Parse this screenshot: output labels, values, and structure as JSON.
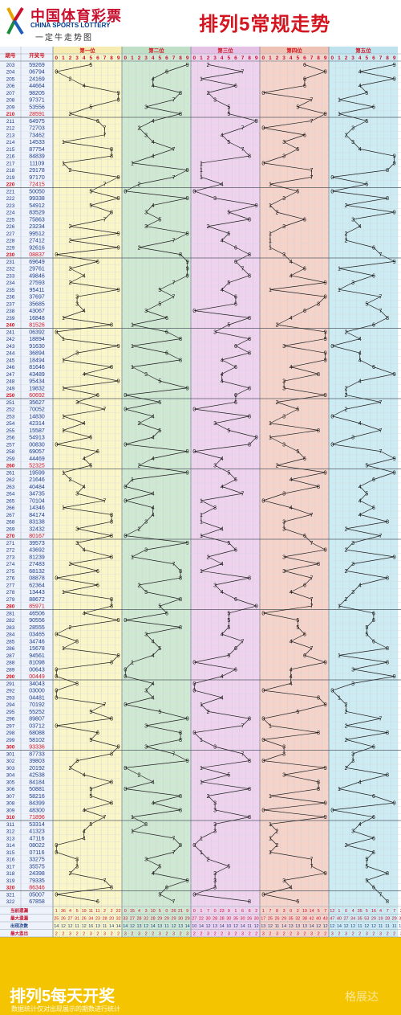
{
  "header": {
    "brand_cn": "中国体育彩票",
    "brand_en": "CHINA SPORTS LOTTERY",
    "brand_sub": "一定牛走势图",
    "title": "排列5常规走势"
  },
  "table": {
    "col_issue": "期号",
    "col_draw": "开奖号"
  },
  "chart_data": {
    "type": "table",
    "positions": [
      "第一位",
      "第二位",
      "第三位",
      "第四位",
      "第五位"
    ],
    "digits": [
      0,
      1,
      2,
      3,
      4,
      5,
      6,
      7,
      8,
      9
    ],
    "issues": [
      "203",
      "204",
      "205",
      "206",
      "207",
      "208",
      "209",
      "210",
      "211",
      "212",
      "213",
      "214",
      "215",
      "216",
      "217",
      "218",
      "219",
      "220",
      "221",
      "222",
      "223",
      "224",
      "225",
      "226",
      "227",
      "228",
      "229",
      "230",
      "231",
      "232",
      "233",
      "234",
      "235",
      "236",
      "237",
      "238",
      "239",
      "240",
      "241",
      "242",
      "243",
      "244",
      "245",
      "246",
      "247",
      "248",
      "249",
      "250",
      "251",
      "252",
      "253",
      "254",
      "255",
      "256",
      "257",
      "258",
      "259",
      "260",
      "261",
      "262",
      "263",
      "264",
      "265",
      "266",
      "267",
      "268",
      "269",
      "270",
      "271",
      "272",
      "273",
      "274",
      "275",
      "276",
      "277",
      "278",
      "279",
      "280",
      "281",
      "282",
      "283",
      "284",
      "285",
      "286",
      "287",
      "288",
      "289",
      "290",
      "291",
      "292",
      "293",
      "294",
      "295",
      "296",
      "297",
      "298",
      "299",
      "300",
      "301",
      "302",
      "303",
      "304",
      "305",
      "306",
      "307",
      "308",
      "309",
      "310",
      "311",
      "312",
      "313",
      "314",
      "315",
      "316",
      "317",
      "318",
      "319",
      "320",
      "321",
      "322"
    ],
    "draws": [
      "59269",
      "06794",
      "24169",
      "44664",
      "98205",
      "97371",
      "53556",
      "28591",
      "64975",
      "72703",
      "73462",
      "14533",
      "87754",
      "84839",
      "11109",
      "29178",
      "97170",
      "72415",
      "50050",
      "99338",
      "54912",
      "83529",
      "75863",
      "23234",
      "99512",
      "27412",
      "92616",
      "08837",
      "69649",
      "29761",
      "49846",
      "27593",
      "95411",
      "37697",
      "35685",
      "43067",
      "16848",
      "81526",
      "06392",
      "18894",
      "91630",
      "36894",
      "18494",
      "81646",
      "43489",
      "95434",
      "19832",
      "60692",
      "35627",
      "70052",
      "14830",
      "42314",
      "15587",
      "54913",
      "00830",
      "69057",
      "44469",
      "52325",
      "19599",
      "21646",
      "40484",
      "34735",
      "70104",
      "14346",
      "84174",
      "83138",
      "32432",
      "80167",
      "39573",
      "43692",
      "81239",
      "27483",
      "68132",
      "08878",
      "62364",
      "13443",
      "88672",
      "85971",
      "46506",
      "90556",
      "28555",
      "03465",
      "34746",
      "15678",
      "94561",
      "81098",
      "00643",
      "00449",
      "34043",
      "03000",
      "04481",
      "70192",
      "55252",
      "89807",
      "03712",
      "68088",
      "58102",
      "93336",
      "87733",
      "39803",
      "20192",
      "42538",
      "84184",
      "50881",
      "58216",
      "84399",
      "48300",
      "71896",
      "53314",
      "41323",
      "47116",
      "08022",
      "07116",
      "33275",
      "35575",
      "24398",
      "79335",
      "86346",
      "05007",
      "67858"
    ],
    "stats_labels": [
      "当前遗漏",
      "最大遗漏",
      "出现次数",
      "最大连出"
    ],
    "stats": [
      [
        "1",
        "36",
        "4",
        "5",
        "19",
        "11",
        "11",
        "2",
        "2",
        "22",
        "0",
        "15",
        "4",
        "3",
        "10",
        "5",
        "0",
        "26",
        "21",
        "9",
        "0",
        "1",
        "7",
        "0",
        "23",
        "9",
        "1",
        "6",
        "6",
        "2",
        "1",
        "7",
        "8",
        "3",
        "0",
        "2",
        "19",
        "14",
        "5",
        "7",
        "12",
        "1",
        "0",
        "4",
        "35",
        "5",
        "16",
        "4",
        "7",
        "7",
        "2",
        "0",
        "15",
        "13",
        "0",
        "4",
        "8",
        "2",
        "0",
        "12"
      ],
      [
        "25",
        "26",
        "27",
        "31",
        "26",
        "34",
        "23",
        "28",
        "20",
        "32",
        "33",
        "27",
        "28",
        "32",
        "28",
        "29",
        "29",
        "29",
        "30",
        "29",
        "27",
        "22",
        "30",
        "28",
        "28",
        "30",
        "35",
        "30",
        "26",
        "30",
        "17",
        "25",
        "26",
        "29",
        "35",
        "32",
        "38",
        "42",
        "40",
        "43",
        "47",
        "40",
        "27",
        "34",
        "35",
        "53",
        "29",
        "19",
        "28",
        "29",
        "34",
        "28",
        "17",
        "25",
        "22",
        "17",
        "17",
        "27",
        "20",
        "27"
      ],
      [
        "14",
        "12",
        "12",
        "11",
        "12",
        "16",
        "13",
        "11",
        "14",
        "14",
        "14",
        "12",
        "13",
        "12",
        "14",
        "13",
        "11",
        "12",
        "13",
        "14",
        "10",
        "14",
        "12",
        "13",
        "14",
        "10",
        "12",
        "14",
        "11",
        "12",
        "13",
        "12",
        "11",
        "14",
        "13",
        "13",
        "13",
        "14",
        "12",
        "12",
        "12",
        "14",
        "12",
        "12",
        "11",
        "12",
        "12",
        "11",
        "11",
        "11",
        "12",
        "14",
        "12",
        "13",
        "12",
        "11",
        "14",
        "13",
        "11",
        "14"
      ],
      [
        "2",
        "2",
        "3",
        "2",
        "2",
        "3",
        "2",
        "3",
        "2",
        "2",
        "3",
        "2",
        "3",
        "2",
        "2",
        "3",
        "2",
        "3",
        "2",
        "3",
        "2",
        "2",
        "3",
        "2",
        "2",
        "3",
        "2",
        "3",
        "2",
        "2",
        "3",
        "2",
        "3",
        "2",
        "2",
        "3",
        "2",
        "3",
        "2",
        "2",
        "3",
        "2",
        "3",
        "2",
        "2",
        "3",
        "2",
        "3",
        "2",
        "2",
        "3",
        "2",
        "3",
        "2",
        "2",
        "3",
        "2",
        "3",
        "2",
        "2"
      ]
    ]
  },
  "footer": {
    "main": "排列5每天开奖",
    "sub": "数据统计仅对出现展示的期数进行统计",
    "watermark": "格展达"
  }
}
